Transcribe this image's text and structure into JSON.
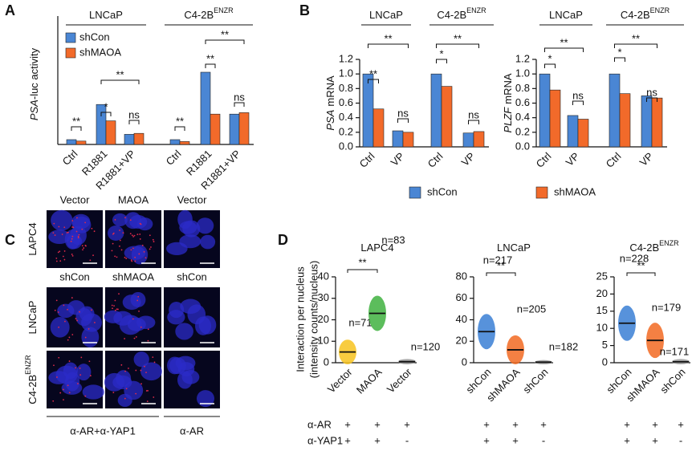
{
  "panel_labels": [
    "A",
    "B",
    "C",
    "D"
  ],
  "chart_data": [
    {
      "type": "bar",
      "ylabel_gene": "PSA",
      "ylabel": "-luc activity",
      "groups": [
        {
          "name": "LNCaP"
        },
        {
          "name": "C4-2B",
          "superscript": "ENZR"
        }
      ],
      "categories": [
        "Ctrl",
        "R1881",
        "R1881+VP",
        "Ctrl",
        "R1881",
        "R1881+VP"
      ],
      "series": [
        {
          "name": "shCon",
          "color": "#4a86d4",
          "values": [
            1.0,
            8.3,
            2.1,
            1.0,
            15.0,
            6.3
          ]
        },
        {
          "name": "shMAOA",
          "color": "#f26a2a",
          "values": [
            0.7,
            4.9,
            2.3,
            0.6,
            6.3,
            6.6
          ]
        }
      ],
      "ylim": [
        0,
        25
      ],
      "legend": "upper left",
      "annotations": [
        "**",
        "*",
        "**",
        "ns",
        "**",
        "**",
        "**",
        "ns"
      ]
    },
    {
      "type": "bar",
      "ylabel_gene": "PSA",
      "ylabel": "mRNA",
      "groups": [
        {
          "name": "LNCaP"
        },
        {
          "name": "C4-2B",
          "superscript": "ENZR"
        }
      ],
      "categories": [
        "Ctrl",
        "VP",
        "Ctrl",
        "VP"
      ],
      "series": [
        {
          "name": "shCon",
          "color": "#4a86d4",
          "values": [
            1.0,
            0.22,
            1.0,
            0.19
          ]
        },
        {
          "name": "shMAOA",
          "color": "#f26a2a",
          "values": [
            0.52,
            0.2,
            0.83,
            0.21
          ]
        }
      ],
      "ylim": [
        0,
        1.2
      ],
      "yticks": [
        {
          "value": 0,
          "label": "0.0"
        },
        {
          "value": 0.2,
          "label": "0.2"
        },
        {
          "value": 0.4,
          "label": "0.4"
        },
        {
          "value": 0.6,
          "label": "0.6"
        },
        {
          "value": 0.8,
          "label": "0.8"
        },
        {
          "value": 1,
          "label": "1.0"
        },
        {
          "value": 1.2,
          "label": "1.2"
        }
      ],
      "legend": "bottom",
      "annotations": [
        "**",
        "**",
        "ns",
        "*",
        "**",
        "ns"
      ]
    },
    {
      "type": "bar",
      "ylabel_gene": "PLZF",
      "ylabel": "mRNA",
      "groups": [
        {
          "name": "LNCaP"
        },
        {
          "name": "C4-2B",
          "superscript": "ENZR"
        }
      ],
      "categories": [
        "Ctrl",
        "VP",
        "Ctrl",
        "VP"
      ],
      "series": [
        {
          "color": "#4a86d4",
          "values": [
            1.0,
            0.43,
            1.0,
            0.7
          ]
        },
        {
          "color": "#f26a2a",
          "values": [
            0.78,
            0.38,
            0.73,
            0.67
          ]
        }
      ],
      "ylim": [
        0,
        1.2
      ],
      "yticks": [
        {
          "value": 0,
          "label": "0.0"
        },
        {
          "value": 0.2,
          "label": "0.2"
        },
        {
          "value": 0.4,
          "label": "0.4"
        },
        {
          "value": 0.6,
          "label": "0.6"
        },
        {
          "value": 0.8,
          "label": "0.8"
        },
        {
          "value": 1,
          "label": "1.0"
        },
        {
          "value": 1.2,
          "label": "1.2"
        }
      ],
      "annotations": [
        "*",
        "**",
        "ns",
        "*",
        "**",
        "ns"
      ]
    },
    {
      "type": "strip",
      "title": "LAPC4",
      "ylabel": [
        "Interaction per nucleus",
        "(intensity counts/nucleus)"
      ],
      "categories": [
        "Vector",
        "MAOA",
        "Vector"
      ],
      "values": [
        5,
        23,
        0.5
      ],
      "colors": [
        "#f7c31f",
        "#3fb23f",
        "#9a9a9a"
      ],
      "n_labels": [
        "n=71",
        "n=83",
        "n=120"
      ],
      "ylim": [
        0,
        40
      ],
      "yticks": [
        0,
        10,
        20,
        30,
        40
      ],
      "annotation": "**",
      "conditions": [
        {
          "name": "α-AR",
          "marks": [
            "+",
            "+",
            "+"
          ]
        },
        {
          "name": "α-YAP1",
          "marks": [
            "+",
            "+",
            "-"
          ]
        }
      ]
    },
    {
      "type": "strip",
      "title": "LNCaP",
      "categories": [
        "shCon",
        "shMAOA",
        "shCon"
      ],
      "values": [
        29,
        12,
        0.5
      ],
      "colors": [
        "#3a7fd5",
        "#f26a22",
        "#9a9a9a"
      ],
      "n_labels": [
        "n=217",
        "n=205",
        "n=182"
      ],
      "ylim": [
        0,
        80
      ],
      "yticks": [
        0,
        20,
        40,
        60,
        80
      ],
      "annotation": "**",
      "conditions": [
        {
          "marks": [
            "+",
            "+",
            "+"
          ]
        },
        {
          "marks": [
            "+",
            "+",
            "-"
          ]
        }
      ]
    },
    {
      "type": "strip",
      "title": "C4-2B",
      "title_superscript": "ENZR",
      "categories": [
        "shCon",
        "shMAOA",
        "shCon"
      ],
      "values": [
        11.5,
        6.5,
        0.3
      ],
      "colors": [
        "#3a7fd5",
        "#f26a22",
        "#9a9a9a"
      ],
      "n_labels": [
        "n=228",
        "n=179",
        "n=171"
      ],
      "ylim": [
        0,
        25
      ],
      "yticks": [
        0,
        5,
        10,
        15,
        20,
        25
      ],
      "annotation": "**",
      "conditions": [
        {
          "marks": [
            "+",
            "+",
            "+"
          ]
        },
        {
          "marks": [
            "+",
            "+",
            "-"
          ]
        }
      ]
    }
  ],
  "image_panel": {
    "column_headers": [
      [
        "Vector",
        "MAOA",
        "Vector"
      ],
      [
        "shCon",
        "shMAOA",
        "shCon"
      ]
    ],
    "rows": [
      {
        "name": "LAPC4"
      },
      {
        "name": "LNCaP"
      },
      {
        "name": "C4-2B",
        "superscript": "ENZR"
      }
    ],
    "footer": [
      "α-AR+α-YAP1",
      "α-AR"
    ]
  }
}
